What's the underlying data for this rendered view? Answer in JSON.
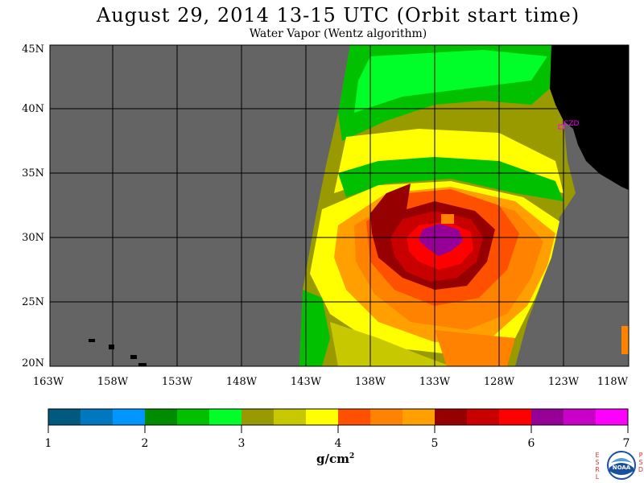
{
  "header": {
    "title": "August 29, 2014  13-15 UTC  (Orbit start time)",
    "subtitle": "Water Vapor (Wentz algorithm)"
  },
  "map": {
    "lat_labels": [
      "45N",
      "40N",
      "35N",
      "30N",
      "25N",
      "20N"
    ],
    "lon_labels": [
      "163W",
      "158W",
      "153W",
      "148W",
      "143W",
      "138W",
      "133W",
      "128W",
      "123W",
      "118W"
    ],
    "station_label": "CZD",
    "colors": {
      "nodata": "#646464",
      "land": "#000000",
      "grid": "#000000",
      "station": "#ff00ff"
    }
  },
  "colorbar": {
    "tick_labels": [
      "1",
      "2",
      "3",
      "4",
      "5",
      "6",
      "7"
    ],
    "units": "g/cm",
    "units_sup": "2",
    "colors": [
      "#005a80",
      "#0078c0",
      "#0096ff",
      "#008c00",
      "#00c000",
      "#00ff28",
      "#999900",
      "#c8c800",
      "#ffff00",
      "#ff5000",
      "#ff8200",
      "#ffa000",
      "#960000",
      "#c80000",
      "#ff0000",
      "#960096",
      "#c800c8",
      "#ff00ff"
    ]
  },
  "logo": {
    "left_letters": [
      "E",
      "S",
      "R",
      "L"
    ],
    "right_letters": [
      "P",
      "S",
      "D"
    ],
    "center_text": "NOAA"
  }
}
